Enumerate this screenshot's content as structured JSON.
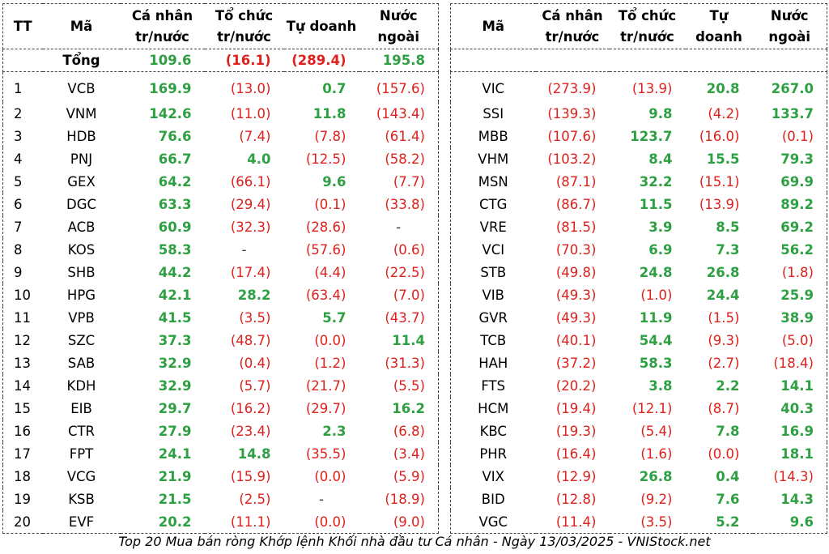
{
  "headers_left": {
    "tt": "TT",
    "ma": "Mã",
    "ca_nhan": [
      "Cá nhân",
      "tr/nước"
    ],
    "to_chuc": [
      "Tổ chức",
      "tr/nước"
    ],
    "tu_doanh": [
      "Tự doanh"
    ],
    "nuoc_ngoai": [
      "Nước",
      "ngoài"
    ]
  },
  "headers_right": {
    "ma": "Mã",
    "ca_nhan": [
      "Cá nhân",
      "tr/nước"
    ],
    "to_chuc": [
      "Tổ chức",
      "tr/nước"
    ],
    "tu_doanh": [
      "Tự",
      "doanh"
    ],
    "nuoc_ngoai": [
      "Nước",
      "ngoài"
    ]
  },
  "total": {
    "label": "Tổng",
    "values": [
      "109.6",
      "(16.1)",
      "(289.4)",
      "195.8"
    ]
  },
  "left_rows": [
    {
      "tt": "1",
      "ma": "VCB",
      "v": [
        "169.9",
        "(13.0)",
        "0.7",
        "(157.6)"
      ]
    },
    {
      "tt": "2",
      "ma": "VNM",
      "v": [
        "142.6",
        "(11.0)",
        "11.8",
        "(143.4)"
      ]
    },
    {
      "tt": "3",
      "ma": "HDB",
      "v": [
        "76.6",
        "(7.4)",
        "(7.8)",
        "(61.4)"
      ]
    },
    {
      "tt": "4",
      "ma": "PNJ",
      "v": [
        "66.7",
        "4.0",
        "(12.5)",
        "(58.2)"
      ]
    },
    {
      "tt": "5",
      "ma": "GEX",
      "v": [
        "64.2",
        "(66.1)",
        "9.6",
        "(7.7)"
      ]
    },
    {
      "tt": "6",
      "ma": "DGC",
      "v": [
        "63.3",
        "(29.4)",
        "(0.1)",
        "(33.8)"
      ]
    },
    {
      "tt": "7",
      "ma": "ACB",
      "v": [
        "60.9",
        "(32.3)",
        "(28.6)",
        "-"
      ]
    },
    {
      "tt": "8",
      "ma": "KOS",
      "v": [
        "58.3",
        "-",
        "(57.6)",
        "(0.6)"
      ]
    },
    {
      "tt": "9",
      "ma": "SHB",
      "v": [
        "44.2",
        "(17.4)",
        "(4.4)",
        "(22.5)"
      ]
    },
    {
      "tt": "10",
      "ma": "HPG",
      "v": [
        "42.1",
        "28.2",
        "(63.4)",
        "(7.0)"
      ]
    },
    {
      "tt": "11",
      "ma": "VPB",
      "v": [
        "41.5",
        "(3.5)",
        "5.7",
        "(43.7)"
      ]
    },
    {
      "tt": "12",
      "ma": "SZC",
      "v": [
        "37.3",
        "(48.7)",
        "(0.0)",
        "11.4"
      ]
    },
    {
      "tt": "13",
      "ma": "SAB",
      "v": [
        "32.9",
        "(0.4)",
        "(1.2)",
        "(31.3)"
      ]
    },
    {
      "tt": "14",
      "ma": "KDH",
      "v": [
        "32.9",
        "(5.7)",
        "(21.7)",
        "(5.5)"
      ]
    },
    {
      "tt": "15",
      "ma": "EIB",
      "v": [
        "29.7",
        "(16.2)",
        "(29.7)",
        "16.2"
      ]
    },
    {
      "tt": "16",
      "ma": "CTR",
      "v": [
        "27.9",
        "(23.4)",
        "2.3",
        "(6.8)"
      ]
    },
    {
      "tt": "17",
      "ma": "FPT",
      "v": [
        "24.1",
        "14.8",
        "(35.5)",
        "(3.4)"
      ]
    },
    {
      "tt": "18",
      "ma": "VCG",
      "v": [
        "21.9",
        "(15.9)",
        "(0.0)",
        "(5.9)"
      ]
    },
    {
      "tt": "19",
      "ma": "KSB",
      "v": [
        "21.5",
        "(2.5)",
        "-",
        "(18.9)"
      ]
    },
    {
      "tt": "20",
      "ma": "EVF",
      "v": [
        "20.2",
        "(11.1)",
        "(0.0)",
        "(9.0)"
      ]
    }
  ],
  "right_rows": [
    {
      "ma": "VIC",
      "v": [
        "(273.9)",
        "(13.9)",
        "20.8",
        "267.0"
      ]
    },
    {
      "ma": "SSI",
      "v": [
        "(139.3)",
        "9.8",
        "(4.2)",
        "133.7"
      ]
    },
    {
      "ma": "MBB",
      "v": [
        "(107.6)",
        "123.7",
        "(16.0)",
        "(0.1)"
      ]
    },
    {
      "ma": "VHM",
      "v": [
        "(103.2)",
        "8.4",
        "15.5",
        "79.3"
      ]
    },
    {
      "ma": "MSN",
      "v": [
        "(87.1)",
        "32.2",
        "(15.1)",
        "69.9"
      ]
    },
    {
      "ma": "CTG",
      "v": [
        "(86.7)",
        "11.5",
        "(13.9)",
        "89.2"
      ]
    },
    {
      "ma": "VRE",
      "v": [
        "(81.5)",
        "3.9",
        "8.5",
        "69.2"
      ]
    },
    {
      "ma": "VCI",
      "v": [
        "(70.3)",
        "6.9",
        "7.3",
        "56.2"
      ]
    },
    {
      "ma": "STB",
      "v": [
        "(49.8)",
        "24.8",
        "26.8",
        "(1.8)"
      ]
    },
    {
      "ma": "VIB",
      "v": [
        "(49.3)",
        "(1.0)",
        "24.4",
        "25.9"
      ]
    },
    {
      "ma": "GVR",
      "v": [
        "(49.3)",
        "11.9",
        "(1.5)",
        "38.9"
      ]
    },
    {
      "ma": "TCB",
      "v": [
        "(40.1)",
        "54.4",
        "(9.3)",
        "(5.0)"
      ]
    },
    {
      "ma": "HAH",
      "v": [
        "(37.2)",
        "58.3",
        "(2.7)",
        "(18.4)"
      ]
    },
    {
      "ma": "FTS",
      "v": [
        "(20.2)",
        "3.8",
        "2.2",
        "14.1"
      ]
    },
    {
      "ma": "HCM",
      "v": [
        "(19.4)",
        "(12.1)",
        "(8.7)",
        "40.3"
      ]
    },
    {
      "ma": "KBC",
      "v": [
        "(19.3)",
        "(5.4)",
        "7.8",
        "16.9"
      ]
    },
    {
      "ma": "PHR",
      "v": [
        "(16.4)",
        "(1.6)",
        "(0.0)",
        "18.1"
      ]
    },
    {
      "ma": "VIX",
      "v": [
        "(12.9)",
        "26.8",
        "0.4",
        "(14.3)"
      ]
    },
    {
      "ma": "BID",
      "v": [
        "(12.8)",
        "(9.2)",
        "7.6",
        "14.3"
      ]
    },
    {
      "ma": "VGC",
      "v": [
        "(11.4)",
        "(3.5)",
        "5.2",
        "9.6"
      ]
    }
  ],
  "caption": "Top 20 Mua bán ròng Khớp lệnh Khối nhà đầu tư Cá nhân - Ngày 13/03/2025 - VNIStock.net",
  "colors": {
    "positive": "#2ea043",
    "negative": "#e0201c",
    "border": "#444444"
  }
}
